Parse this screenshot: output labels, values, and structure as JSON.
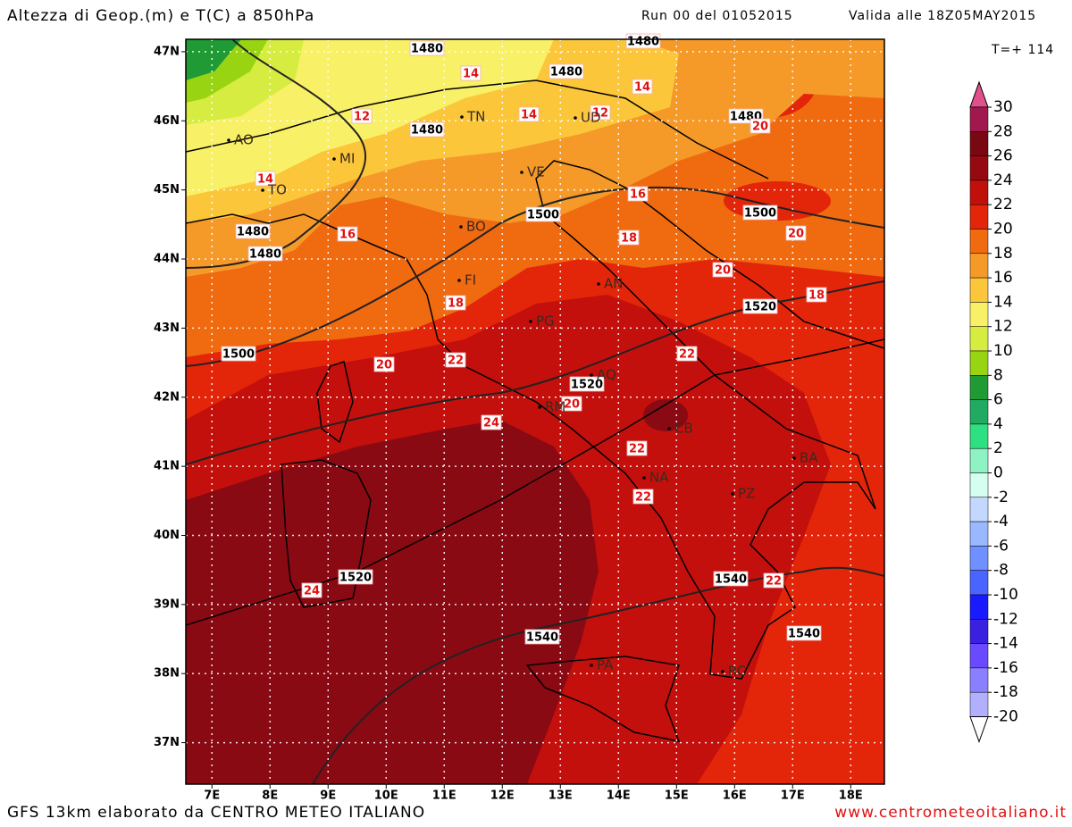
{
  "header": {
    "title": "Altezza di Geop.(m) e T(C) a 850hPa",
    "run": "Run 00 del 01052015",
    "valid": "Valida alle 18Z05MAY2015",
    "forecast_step": "T=+ 114"
  },
  "footer": {
    "model": "GFS 13km elaborato da CENTRO METEO ITALIANO",
    "website": "www.centrometeoitaliano.it"
  },
  "axes": {
    "xlim": [
      6.55,
      18.58
    ],
    "ylim": [
      36.4,
      47.18
    ],
    "xticks": [
      {
        "value": 7,
        "label": "7E"
      },
      {
        "value": 8,
        "label": "8E"
      },
      {
        "value": 9,
        "label": "9E"
      },
      {
        "value": 10,
        "label": "10E"
      },
      {
        "value": 11,
        "label": "11E"
      },
      {
        "value": 12,
        "label": "12E"
      },
      {
        "value": 13,
        "label": "13E"
      },
      {
        "value": 14,
        "label": "14E"
      },
      {
        "value": 15,
        "label": "15E"
      },
      {
        "value": 16,
        "label": "16E"
      },
      {
        "value": 17,
        "label": "17E"
      },
      {
        "value": 18,
        "label": "18E"
      }
    ],
    "yticks": [
      {
        "value": 37,
        "label": "37N"
      },
      {
        "value": 38,
        "label": "38N"
      },
      {
        "value": 39,
        "label": "39N"
      },
      {
        "value": 40,
        "label": "40N"
      },
      {
        "value": 41,
        "label": "41N"
      },
      {
        "value": 42,
        "label": "42N"
      },
      {
        "value": 43,
        "label": "43N"
      },
      {
        "value": 44,
        "label": "44N"
      },
      {
        "value": 45,
        "label": "45N"
      },
      {
        "value": 46,
        "label": "46N"
      },
      {
        "value": 47,
        "label": "47N"
      }
    ]
  },
  "colorbar": {
    "levels": [
      30,
      28,
      26,
      24,
      22,
      20,
      18,
      16,
      14,
      12,
      10,
      8,
      6,
      4,
      2,
      0,
      -2,
      -4,
      -6,
      -8,
      -10,
      -12,
      -14,
      -16,
      -18,
      -20
    ],
    "colors": [
      "#a0184e",
      "#7a0812",
      "#950a10",
      "#c0100c",
      "#e3250a",
      "#f06a10",
      "#f59a28",
      "#fbc63a",
      "#f8f066",
      "#d6ec40",
      "#98d412",
      "#1f9a34",
      "#20aa62",
      "#2ee082",
      "#8ef2c2",
      "#d4fff0",
      "#c4d8ff",
      "#9ab8ff",
      "#7090ff",
      "#4a64ff",
      "#1a1aff",
      "#3a20e0",
      "#6a4aff",
      "#8a80ff",
      "#b0b0ff"
    ],
    "over_color": "#e0508a",
    "under_color": "#ffffff"
  },
  "contour_labels": {
    "height": [
      1480,
      1480,
      1480,
      1480,
      1480,
      1480,
      1480,
      1500,
      1500,
      1500,
      1520,
      1520,
      1520,
      1540,
      1540,
      1540
    ],
    "temperature": [
      14,
      14,
      14,
      12,
      12,
      14,
      16,
      16,
      20,
      18,
      18,
      18,
      20,
      20,
      20,
      20,
      22,
      22,
      22,
      22,
      22,
      24,
      24
    ]
  },
  "cities": [
    "AO",
    "MI",
    "TO",
    "TN",
    "UD",
    "VE",
    "BO",
    "FI",
    "AN",
    "PG",
    "AQ",
    "RM",
    "CB",
    "NA",
    "PZ",
    "BA",
    "PA",
    "RC"
  ]
}
